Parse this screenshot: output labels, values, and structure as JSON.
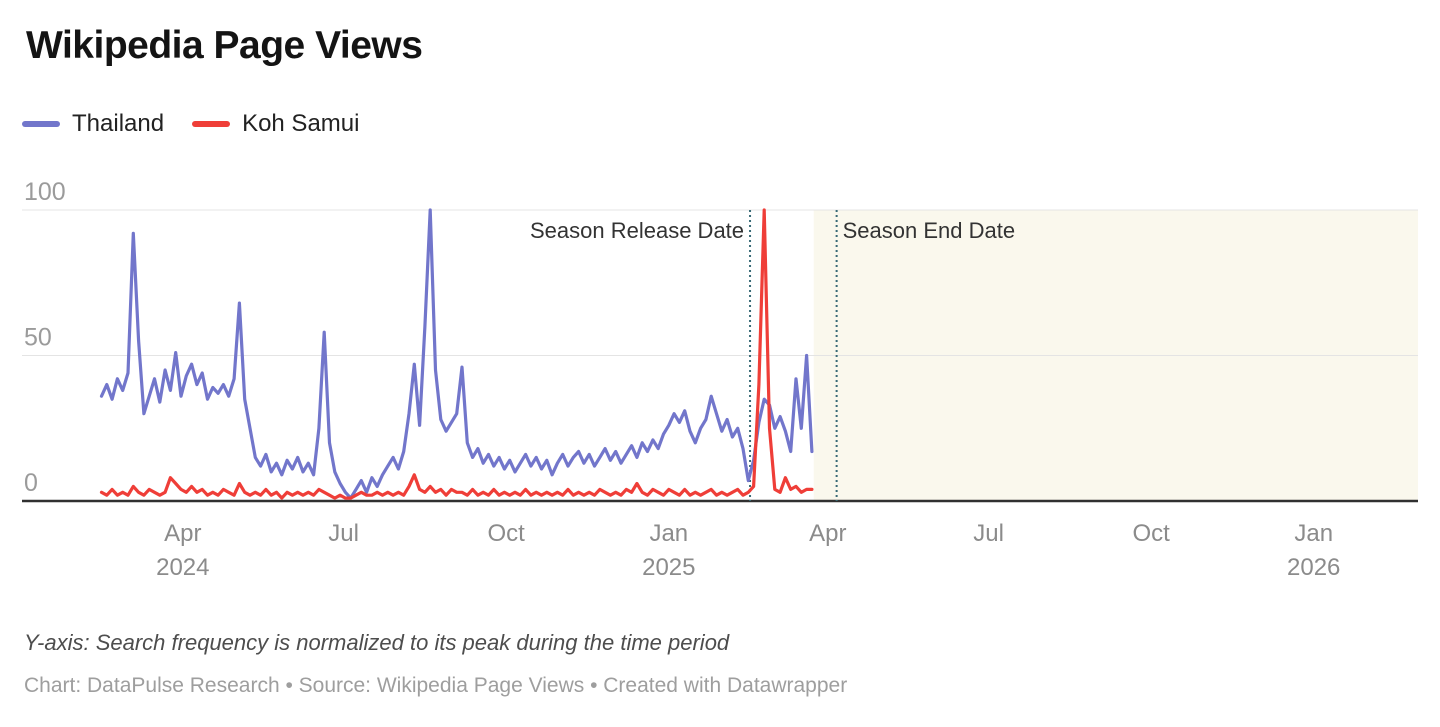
{
  "header": {
    "title": "Wikipedia Page Views"
  },
  "legend": [
    {
      "label": "Thailand",
      "color": "#7276cb"
    },
    {
      "label": "Koh Samui",
      "color": "#ef3e38"
    }
  ],
  "notes": {
    "yaxis_note": "Y-axis: Search frequency is normalized to its peak during the time period",
    "byline": "Chart: DataPulse Research • Source: Wikipedia Page Views • Created with Datawrapper"
  },
  "chart_data": {
    "type": "line",
    "title": "Wikipedia Page Views",
    "x_axis": {
      "min": "2024-01-01",
      "max": "2026-03-01",
      "ticks": [
        {
          "date": "2024-04-01",
          "month": "Apr",
          "year": "2024"
        },
        {
          "date": "2024-07-01",
          "month": "Jul",
          "year": ""
        },
        {
          "date": "2024-10-01",
          "month": "Oct",
          "year": ""
        },
        {
          "date": "2025-01-01",
          "month": "Jan",
          "year": "2025"
        },
        {
          "date": "2025-04-01",
          "month": "Apr",
          "year": ""
        },
        {
          "date": "2025-07-01",
          "month": "Jul",
          "year": ""
        },
        {
          "date": "2025-10-01",
          "month": "Oct",
          "year": ""
        },
        {
          "date": "2026-01-01",
          "month": "Jan",
          "year": "2026"
        }
      ]
    },
    "y_axis": {
      "range": [
        0,
        100
      ],
      "gridlines": true,
      "ticks": [
        {
          "value": 100,
          "label": "100"
        },
        {
          "value": 50,
          "label": "50"
        },
        {
          "value": 0,
          "label": "0"
        }
      ]
    },
    "series": [
      {
        "name": "Thailand",
        "color": "#7276cb",
        "start": "2024-02-15",
        "step_days": 3,
        "values": [
          36,
          40,
          35,
          42,
          38,
          44,
          92,
          55,
          30,
          36,
          42,
          34,
          45,
          38,
          51,
          36,
          43,
          47,
          40,
          44,
          35,
          39,
          37,
          40,
          36,
          42,
          68,
          35,
          25,
          15,
          12,
          16,
          10,
          13,
          9,
          14,
          11,
          15,
          10,
          13,
          9,
          25,
          58,
          20,
          10,
          6,
          3,
          1,
          4,
          7,
          3,
          8,
          5,
          9,
          12,
          15,
          11,
          17,
          30,
          47,
          26,
          60,
          100,
          45,
          28,
          24,
          27,
          30,
          46,
          20,
          15,
          18,
          13,
          16,
          12,
          15,
          11,
          14,
          10,
          13,
          16,
          12,
          15,
          11,
          14,
          9,
          13,
          16,
          12,
          15,
          17,
          13,
          16,
          12,
          15,
          18,
          14,
          17,
          13,
          16,
          19,
          15,
          20,
          17,
          21,
          18,
          23,
          26,
          30,
          27,
          31,
          24,
          20,
          25,
          28,
          36,
          30,
          24,
          28,
          22,
          25,
          18,
          7,
          14,
          27,
          35,
          33,
          25,
          29,
          24,
          17,
          42,
          25,
          50,
          17
        ]
      },
      {
        "name": "Koh Samui",
        "color": "#ef3e38",
        "start": "2024-02-15",
        "step_days": 3,
        "values": [
          3,
          2,
          4,
          2,
          3,
          2,
          5,
          3,
          2,
          4,
          3,
          2,
          3,
          8,
          6,
          4,
          3,
          5,
          3,
          4,
          2,
          3,
          2,
          4,
          3,
          2,
          6,
          3,
          2,
          3,
          2,
          4,
          2,
          3,
          1,
          3,
          2,
          3,
          2,
          3,
          2,
          4,
          3,
          2,
          1,
          2,
          1,
          1,
          2,
          3,
          2,
          2,
          3,
          2,
          3,
          2,
          3,
          2,
          5,
          9,
          4,
          3,
          5,
          3,
          4,
          2,
          4,
          3,
          3,
          2,
          4,
          2,
          3,
          2,
          4,
          2,
          3,
          2,
          3,
          2,
          4,
          2,
          3,
          2,
          3,
          2,
          3,
          2,
          4,
          2,
          3,
          2,
          3,
          2,
          4,
          3,
          2,
          3,
          2,
          4,
          3,
          6,
          3,
          2,
          4,
          3,
          2,
          4,
          3,
          2,
          4,
          2,
          3,
          2,
          3,
          4,
          2,
          3,
          2,
          3,
          4,
          2,
          3,
          5,
          40,
          100,
          25,
          4,
          3,
          8,
          4,
          5,
          3,
          4,
          4
        ]
      }
    ],
    "markers": [
      {
        "date": "2025-02-16",
        "label": "Season Release Date",
        "label_side": "left",
        "color": "#386a76"
      },
      {
        "date": "2025-04-06",
        "label": "Season End Date",
        "label_side": "right",
        "color": "#386a76"
      }
    ],
    "highlight_range": {
      "start": "2025-03-24",
      "end": "2026-03-01",
      "color": "#faf8ed"
    }
  }
}
